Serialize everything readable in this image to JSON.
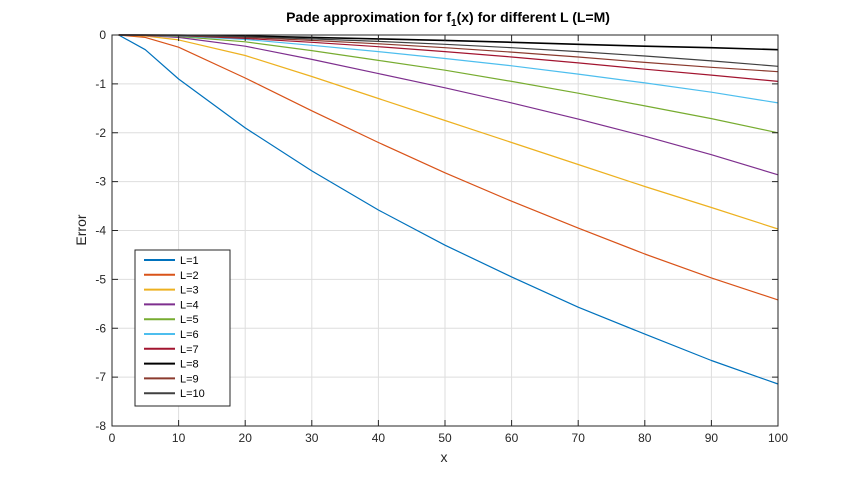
{
  "chart_data": {
    "type": "line",
    "title_main": "Pade approximation for f",
    "title_sub": "1",
    "title_tail": "(x) for different L (L=M)",
    "xlabel": "x",
    "ylabel": "Error",
    "xlim": [
      0,
      100
    ],
    "ylim": [
      -8,
      0
    ],
    "xticks": [
      "0",
      "10",
      "20",
      "30",
      "40",
      "50",
      "60",
      "70",
      "80",
      "90",
      "100"
    ],
    "yticks": [
      "0",
      "-1",
      "-2",
      "-3",
      "-4",
      "-5",
      "-6",
      "-7",
      "-8"
    ],
    "grid": true,
    "legend_position": "lower-left",
    "x": [
      1,
      5,
      10,
      20,
      30,
      40,
      50,
      60,
      70,
      80,
      90,
      100
    ],
    "series": [
      {
        "name": "L=1",
        "color": "#0072BD",
        "values": [
          0,
          -0.3,
          -0.9,
          -1.9,
          -2.78,
          -3.58,
          -4.3,
          -4.95,
          -5.57,
          -6.12,
          -6.66,
          -7.14
        ]
      },
      {
        "name": "L=2",
        "color": "#D95319",
        "values": [
          0,
          -0.05,
          -0.25,
          -0.88,
          -1.55,
          -2.2,
          -2.82,
          -3.4,
          -3.95,
          -4.48,
          -4.97,
          -5.42
        ]
      },
      {
        "name": "L=3",
        "color": "#EDB120",
        "values": [
          0,
          -0.02,
          -0.1,
          -0.42,
          -0.85,
          -1.3,
          -1.75,
          -2.2,
          -2.65,
          -3.1,
          -3.53,
          -3.97
        ]
      },
      {
        "name": "L=4",
        "color": "#7E2F8E",
        "values": [
          0,
          -0.01,
          -0.05,
          -0.23,
          -0.5,
          -0.79,
          -1.08,
          -1.39,
          -1.72,
          -2.07,
          -2.45,
          -2.86
        ]
      },
      {
        "name": "L=5",
        "color": "#77AC30",
        "values": [
          0,
          -0.005,
          -0.03,
          -0.14,
          -0.32,
          -0.52,
          -0.72,
          -0.95,
          -1.19,
          -1.45,
          -1.71,
          -2.0
        ]
      },
      {
        "name": "L=6",
        "color": "#4DBEEE",
        "values": [
          0,
          -0.003,
          -0.02,
          -0.09,
          -0.21,
          -0.34,
          -0.48,
          -0.63,
          -0.8,
          -0.98,
          -1.17,
          -1.39
        ]
      },
      {
        "name": "L=7",
        "color": "#A2142F",
        "values": [
          0,
          -0.002,
          -0.015,
          -0.07,
          -0.15,
          -0.24,
          -0.34,
          -0.45,
          -0.57,
          -0.7,
          -0.82,
          -0.95
        ]
      },
      {
        "name": "L=8",
        "color": "#000000",
        "values": [
          0,
          -0.001,
          -0.005,
          -0.02,
          -0.05,
          -0.08,
          -0.11,
          -0.15,
          -0.19,
          -0.23,
          -0.26,
          -0.3
        ]
      },
      {
        "name": "L=9",
        "color": "#8B3A2E",
        "values": [
          0,
          -0.002,
          -0.01,
          -0.05,
          -0.11,
          -0.18,
          -0.26,
          -0.35,
          -0.45,
          -0.56,
          -0.66,
          -0.75
        ]
      },
      {
        "name": "L=10",
        "color": "#404040",
        "values": [
          0,
          -0.001,
          -0.008,
          -0.035,
          -0.08,
          -0.13,
          -0.19,
          -0.26,
          -0.34,
          -0.43,
          -0.53,
          -0.64
        ]
      }
    ]
  }
}
